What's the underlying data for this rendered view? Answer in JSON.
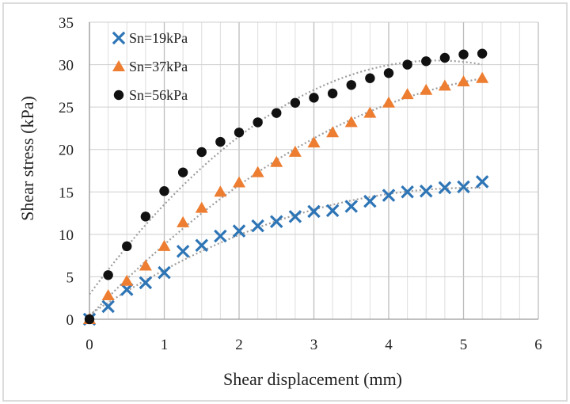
{
  "chart_data": {
    "type": "scatter",
    "xlabel": "Shear displacement (mm)",
    "ylabel": "Shear stress (kPa)",
    "xlim": [
      0,
      6
    ],
    "ylim": [
      0,
      35
    ],
    "xticks": [
      "0",
      "1",
      "2",
      "3",
      "4",
      "5",
      "6"
    ],
    "yticks": [
      "0",
      "5",
      "10",
      "15",
      "20",
      "25",
      "30",
      "35"
    ],
    "grid": true,
    "legend_position": "top-left",
    "trendlines": "dotted",
    "series": [
      {
        "name": "Sn=19kPa",
        "marker": "cross",
        "color": "#2E75B6",
        "x": [
          0,
          0.25,
          0.5,
          0.75,
          1.0,
          1.25,
          1.5,
          1.75,
          2.0,
          2.25,
          2.5,
          2.75,
          3.0,
          3.25,
          3.5,
          3.75,
          4.0,
          4.25,
          4.5,
          4.75,
          5.0,
          5.25
        ],
        "y": [
          0,
          1.5,
          3.5,
          4.3,
          5.5,
          8.0,
          8.7,
          9.8,
          10.4,
          11.0,
          11.5,
          12.1,
          12.7,
          12.8,
          13.3,
          13.9,
          14.6,
          15.0,
          15.1,
          15.5,
          15.6,
          16.2
        ]
      },
      {
        "name": "Sn=37kPa",
        "marker": "triangle",
        "color": "#ED7D31",
        "x": [
          0,
          0.25,
          0.5,
          0.75,
          1.0,
          1.25,
          1.5,
          1.75,
          2.0,
          2.25,
          2.5,
          2.75,
          3.0,
          3.25,
          3.5,
          3.75,
          4.0,
          4.25,
          4.5,
          4.75,
          5.0,
          5.25
        ],
        "y": [
          0,
          2.8,
          4.5,
          6.3,
          8.6,
          11.4,
          13.1,
          15.0,
          16.1,
          17.3,
          18.5,
          19.7,
          20.8,
          22.0,
          23.2,
          24.3,
          25.5,
          26.5,
          27.0,
          27.5,
          28.0,
          28.4
        ]
      },
      {
        "name": "Sn=56kPa",
        "marker": "circle",
        "color": "#111111",
        "x": [
          0,
          0.25,
          0.5,
          0.75,
          1.0,
          1.25,
          1.5,
          1.75,
          2.0,
          2.25,
          2.5,
          2.75,
          3.0,
          3.25,
          3.5,
          3.75,
          4.0,
          4.25,
          4.5,
          4.75,
          5.0,
          5.25
        ],
        "y": [
          0,
          5.2,
          8.6,
          12.1,
          15.1,
          17.3,
          19.7,
          20.9,
          22.0,
          23.2,
          24.3,
          25.5,
          26.1,
          26.6,
          27.6,
          28.4,
          29.0,
          30.0,
          30.4,
          30.8,
          31.2,
          31.3
        ]
      }
    ]
  }
}
